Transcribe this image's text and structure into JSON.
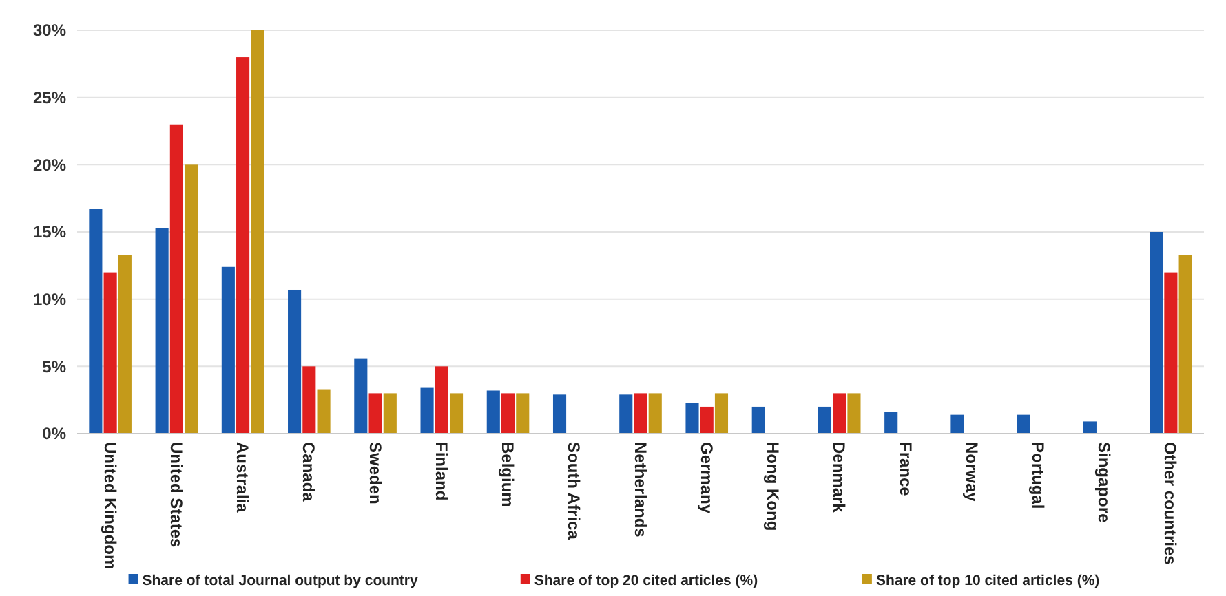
{
  "chart_data": {
    "type": "bar",
    "categories": [
      "United Kingdom",
      "United States",
      "Australia",
      "Canada",
      "Sweden",
      "Finland",
      "Belgium",
      "South Africa",
      "Netherlands",
      "Germany",
      "Hong Kong",
      "Denmark",
      "France",
      "Norway",
      "Portugal",
      "Singapore",
      "Other countries"
    ],
    "series": [
      {
        "name": "Share of total Journal output by country",
        "color": "#1a5cb0",
        "values": [
          16.7,
          15.3,
          12.4,
          10.7,
          5.6,
          3.4,
          3.2,
          2.9,
          2.9,
          2.3,
          2.0,
          2.0,
          1.6,
          1.4,
          1.4,
          0.9,
          15.0
        ]
      },
      {
        "name": "Share of top 20 cited articles (%)",
        "color": "#e02020",
        "values": [
          12,
          23,
          28,
          5,
          3,
          5,
          3,
          null,
          3,
          2,
          null,
          3,
          null,
          null,
          null,
          null,
          12
        ]
      },
      {
        "name": "Share of top 10 cited articles (%)",
        "color": "#c49a1a",
        "values": [
          13.3,
          20,
          30,
          3.3,
          3,
          3,
          3,
          null,
          3,
          3,
          null,
          3,
          null,
          null,
          null,
          null,
          13.3
        ]
      }
    ],
    "ylim": [
      0,
      30
    ],
    "yticks": [
      {
        "value": 0,
        "label": "0%"
      },
      {
        "value": 5,
        "label": "5%"
      },
      {
        "value": 10,
        "label": "10%"
      },
      {
        "value": 15,
        "label": "15%"
      },
      {
        "value": 20,
        "label": "20%"
      },
      {
        "value": 25,
        "label": "25%"
      },
      {
        "value": 30,
        "label": "30%"
      }
    ],
    "grid": "y",
    "legend": "bottom"
  }
}
